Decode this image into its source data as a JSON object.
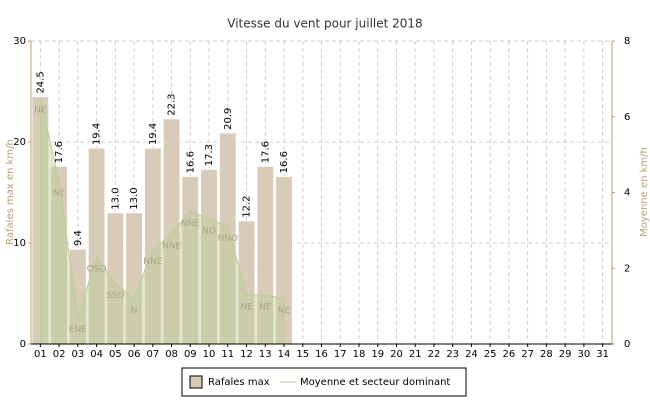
{
  "chart_data": {
    "type": "bar",
    "title": "Vitesse du vent pour juillet 2018",
    "y_label": "Rafales max en km/h",
    "y2_label": "Moyenne en km/h",
    "categories": [
      "01",
      "02",
      "03",
      "04",
      "05",
      "06",
      "07",
      "08",
      "09",
      "10",
      "11",
      "12",
      "13",
      "14",
      "15",
      "16",
      "17",
      "18",
      "19",
      "20",
      "21",
      "22",
      "23",
      "24",
      "25",
      "26",
      "27",
      "28",
      "29",
      "30",
      "31"
    ],
    "ylim": [
      0,
      30
    ],
    "yticks": [
      0,
      10,
      20,
      30
    ],
    "y2lim": [
      0,
      8
    ],
    "y2ticks": [
      0,
      2,
      4,
      6,
      8
    ],
    "grid": true,
    "series": [
      {
        "name": "Rafales max",
        "type": "bar",
        "color": "#d8ccb8",
        "values": [
          24.5,
          17.6,
          9.4,
          19.4,
          13.0,
          13.0,
          19.4,
          22.3,
          16.6,
          17.3,
          20.9,
          12.2,
          17.6,
          16.6,
          null,
          null,
          null,
          null,
          null,
          null,
          null,
          null,
          null,
          null,
          null,
          null,
          null,
          null,
          null,
          null,
          null
        ],
        "value_labels": [
          "24.5",
          "17.6",
          "9.4",
          "19.4",
          "13.0",
          "13.0",
          "19.4",
          "22.3",
          "16.6",
          "17.3",
          "20.9",
          "12.2",
          "17.6",
          "16.6",
          null,
          null,
          null,
          null,
          null,
          null,
          null,
          null,
          null,
          null,
          null,
          null,
          null,
          null,
          null,
          null,
          null
        ]
      },
      {
        "name": "Moyenne et secteur dominant",
        "type": "area",
        "axis": "y2",
        "color": "#bccb98",
        "values": [
          6.5,
          4.3,
          0.7,
          2.3,
          1.6,
          1.2,
          2.5,
          2.9,
          3.5,
          3.3,
          3.1,
          1.3,
          1.3,
          1.2,
          null,
          null,
          null,
          null,
          null,
          null,
          null,
          null,
          null,
          null,
          null,
          null,
          null,
          null,
          null,
          null,
          null
        ],
        "directions": [
          "NE",
          "NE",
          "ENE",
          "OSO",
          "SSO",
          "N",
          "NNE",
          "NNE",
          "NNE",
          "NO",
          "NNO",
          "NE",
          "NE",
          "NE",
          null,
          null,
          null,
          null,
          null,
          null,
          null,
          null,
          null,
          null,
          null,
          null,
          null,
          null,
          null,
          null,
          null
        ]
      }
    ]
  }
}
